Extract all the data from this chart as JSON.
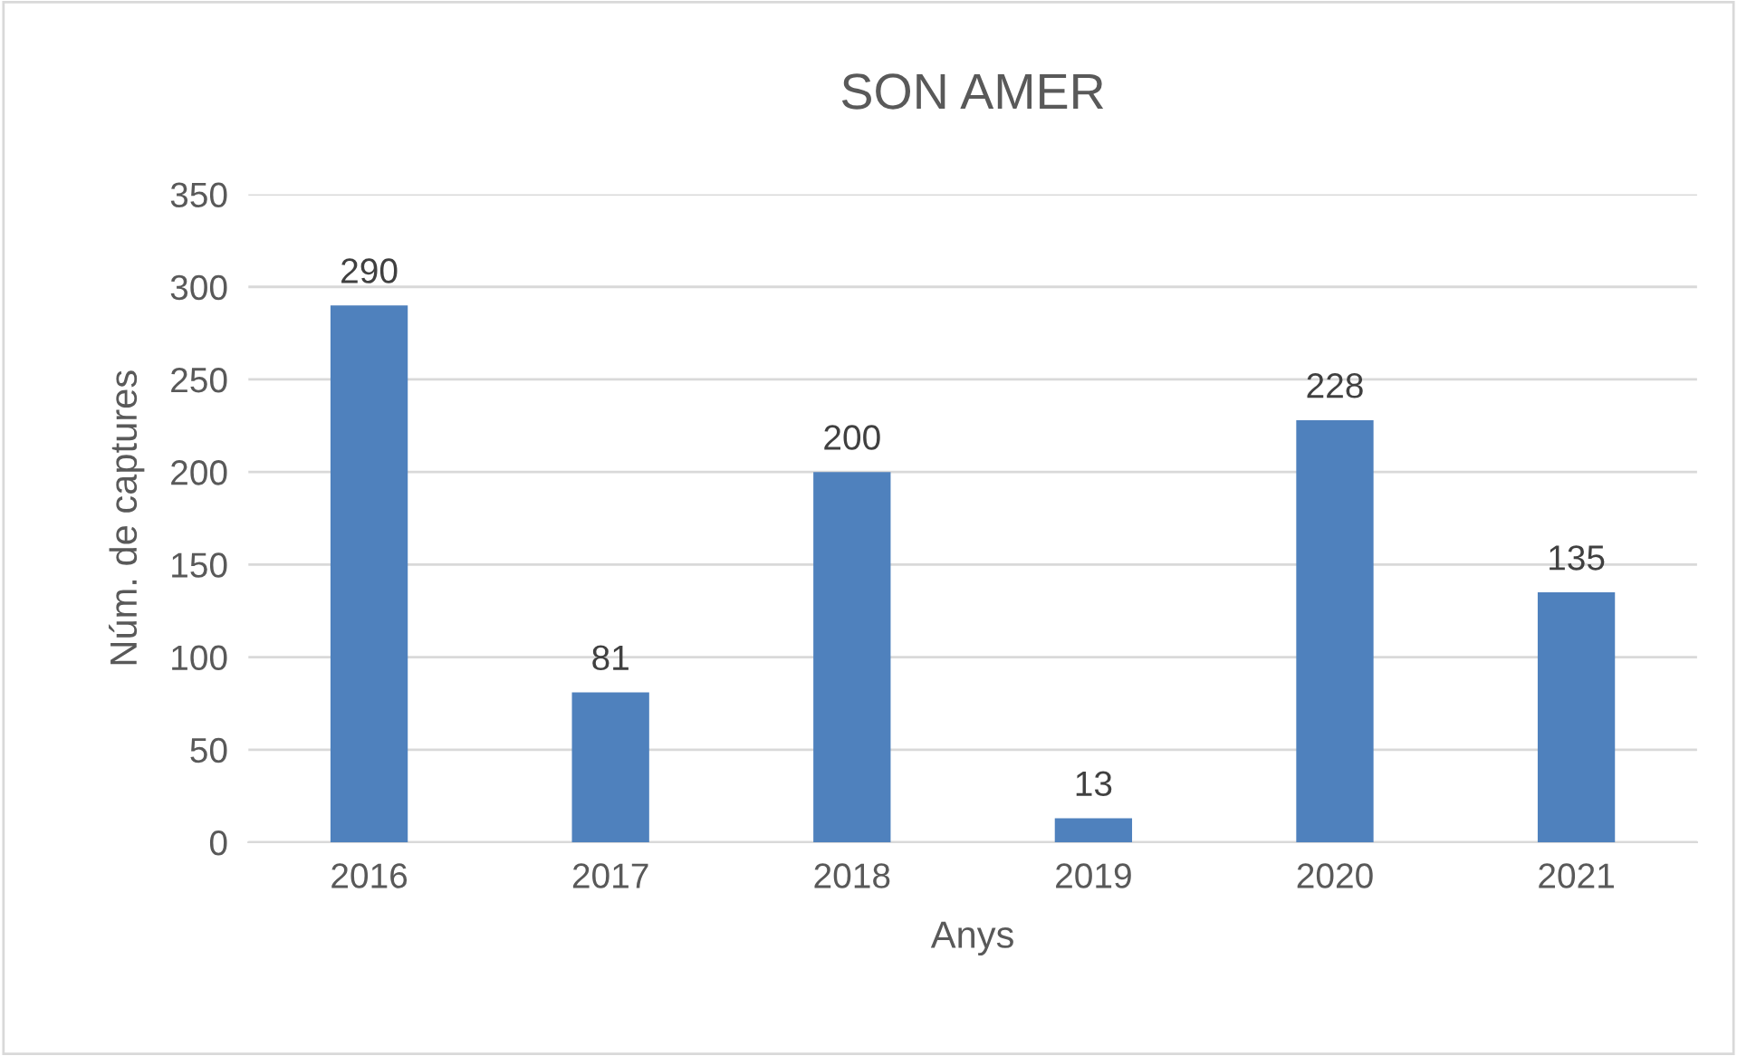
{
  "chart_data": {
    "type": "bar",
    "title": "SON AMER",
    "xlabel": "Anys",
    "ylabel": "Núm. de captures",
    "categories": [
      "2016",
      "2017",
      "2018",
      "2019",
      "2020",
      "2021"
    ],
    "values": [
      290,
      81,
      200,
      13,
      228,
      135
    ],
    "color": "#4f81bd",
    "ylim": [
      0,
      350
    ],
    "yticks": [
      0,
      50,
      100,
      150,
      200,
      250,
      300,
      350
    ],
    "grid": "y",
    "data_labels": true
  }
}
